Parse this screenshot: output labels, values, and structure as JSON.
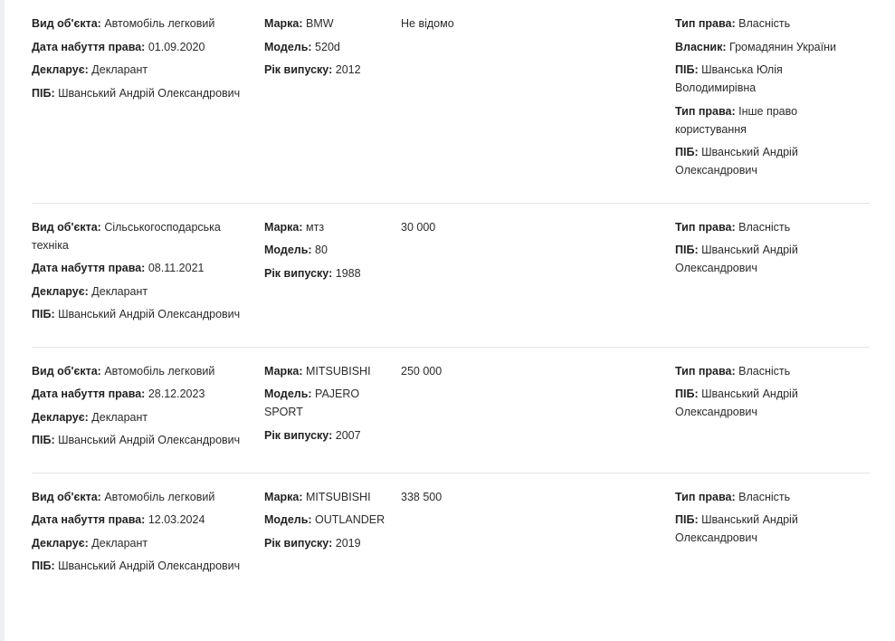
{
  "rows": [
    {
      "object": {
        "type_label": "Вид об'єкта:",
        "type": "Автомобіль легковий",
        "date_label": "Дата набуття права:",
        "date": "01.09.2020",
        "declares_label": "Декларує:",
        "declares": "Декларант",
        "name_label": "ПІБ:",
        "name": "Шванський Андрій Олександрович"
      },
      "vehicle": {
        "brand_label": "Марка:",
        "brand": "BMW",
        "model_label": "Модель:",
        "model": "520d",
        "year_label": "Рік випуску:",
        "year": "2012"
      },
      "value": "Не відомо",
      "rights": [
        {
          "label": "Тип права:",
          "value": "Власність"
        },
        {
          "label": "Власник:",
          "value": "Громадянин України"
        },
        {
          "label": "ПІБ:",
          "value": "Шванська Юлія Володимирівна"
        },
        {
          "label": "Тип права:",
          "value": "Інше право користування"
        },
        {
          "label": "ПІБ:",
          "value": "Шванський Андрій Олександрович"
        }
      ]
    },
    {
      "object": {
        "type_label": "Вид об'єкта:",
        "type": "Сільськогосподарська техніка",
        "date_label": "Дата набуття права:",
        "date": "08.11.2021",
        "declares_label": "Декларує:",
        "declares": "Декларант",
        "name_label": "ПІБ:",
        "name": "Шванський Андрій Олександрович"
      },
      "vehicle": {
        "brand_label": "Марка:",
        "brand": "мтз",
        "model_label": "Модель:",
        "model": "80",
        "year_label": "Рік випуску:",
        "year": "1988"
      },
      "value": "30 000",
      "rights": [
        {
          "label": "Тип права:",
          "value": "Власність"
        },
        {
          "label": "ПІБ:",
          "value": "Шванський Андрій Олександрович"
        }
      ]
    },
    {
      "object": {
        "type_label": "Вид об'єкта:",
        "type": "Автомобіль легковий",
        "date_label": "Дата набуття права:",
        "date": "28.12.2023",
        "declares_label": "Декларує:",
        "declares": "Декларант",
        "name_label": "ПІБ:",
        "name": "Шванський Андрій Олександрович"
      },
      "vehicle": {
        "brand_label": "Марка:",
        "brand": "MITSUBISHI",
        "model_label": "Модель:",
        "model": "PAJERO SPORT",
        "year_label": "Рік випуску:",
        "year": "2007"
      },
      "value": "250 000",
      "rights": [
        {
          "label": "Тип права:",
          "value": "Власність"
        },
        {
          "label": "ПІБ:",
          "value": "Шванський Андрій Олександрович"
        }
      ]
    },
    {
      "object": {
        "type_label": "Вид об'єкта:",
        "type": "Автомобіль легковий",
        "date_label": "Дата набуття права:",
        "date": "12.03.2024",
        "declares_label": "Декларує:",
        "declares": "Декларант",
        "name_label": "ПІБ:",
        "name": "Шванський Андрій Олександрович"
      },
      "vehicle": {
        "brand_label": "Марка:",
        "brand": "MITSUBISHI",
        "model_label": "Модель:",
        "model": "OUTLANDER",
        "year_label": "Рік випуску:",
        "year": "2019"
      },
      "value": "338 500",
      "rights": [
        {
          "label": "Тип права:",
          "value": "Власність"
        },
        {
          "label": "ПІБ:",
          "value": "Шванський Андрій Олександрович"
        }
      ]
    }
  ]
}
